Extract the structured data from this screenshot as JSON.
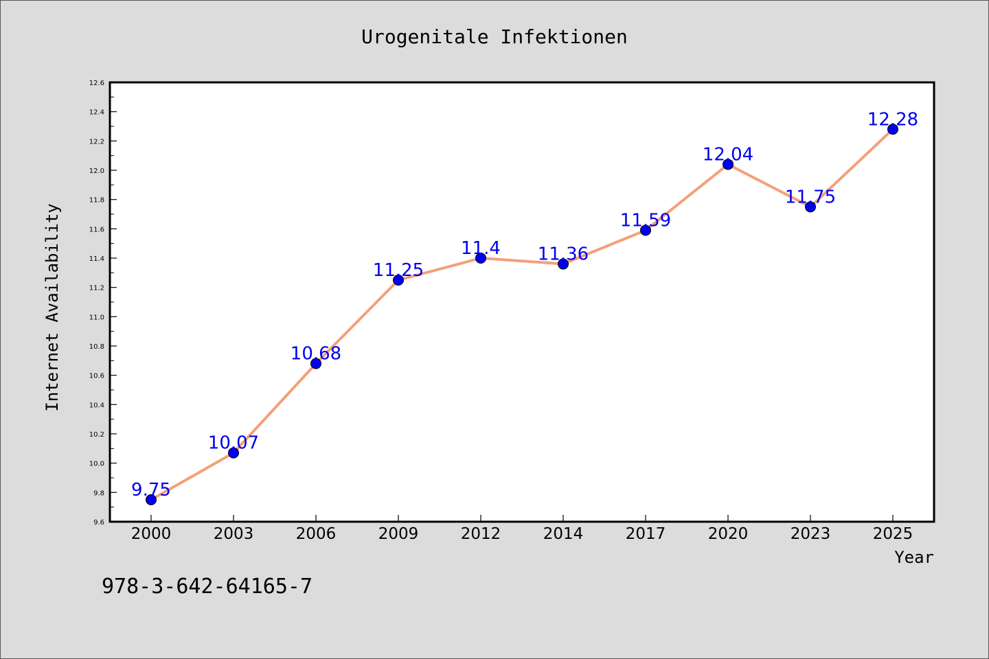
{
  "chart_data": {
    "type": "line",
    "title": "Urogenitale Infektionen",
    "xlabel": "Year",
    "ylabel": "Internet Availability",
    "categories": [
      "2000",
      "2003",
      "2006",
      "2009",
      "2012",
      "2014",
      "2017",
      "2020",
      "2023",
      "2025"
    ],
    "series": [
      {
        "values": [
          9.75,
          10.07,
          10.68,
          11.25,
          11.4,
          11.36,
          11.59,
          12.04,
          11.75,
          12.28
        ],
        "data_labels": [
          "9.75",
          "10.07",
          "10.68",
          "11.25",
          "11.4",
          "11.36",
          "11.59",
          "12.04",
          "11.75",
          "12.28"
        ]
      }
    ],
    "ylim": [
      9.6,
      12.6
    ],
    "yticks": [
      "9.6",
      "9.8",
      "10.0",
      "10.2",
      "10.4",
      "10.6",
      "10.8",
      "11.0",
      "11.2",
      "11.4",
      "11.6",
      "11.8",
      "12.0",
      "12.2",
      "12.4",
      "12.6"
    ],
    "grid": false,
    "legend": "none"
  },
  "footer": {
    "code": "978-3-642-64165-7"
  },
  "colors": {
    "background": "#dcdcdc",
    "plot_background": "#ffffff",
    "line": "#f4a07a",
    "marker": "#0000ee",
    "data_label": "#0000ee"
  }
}
